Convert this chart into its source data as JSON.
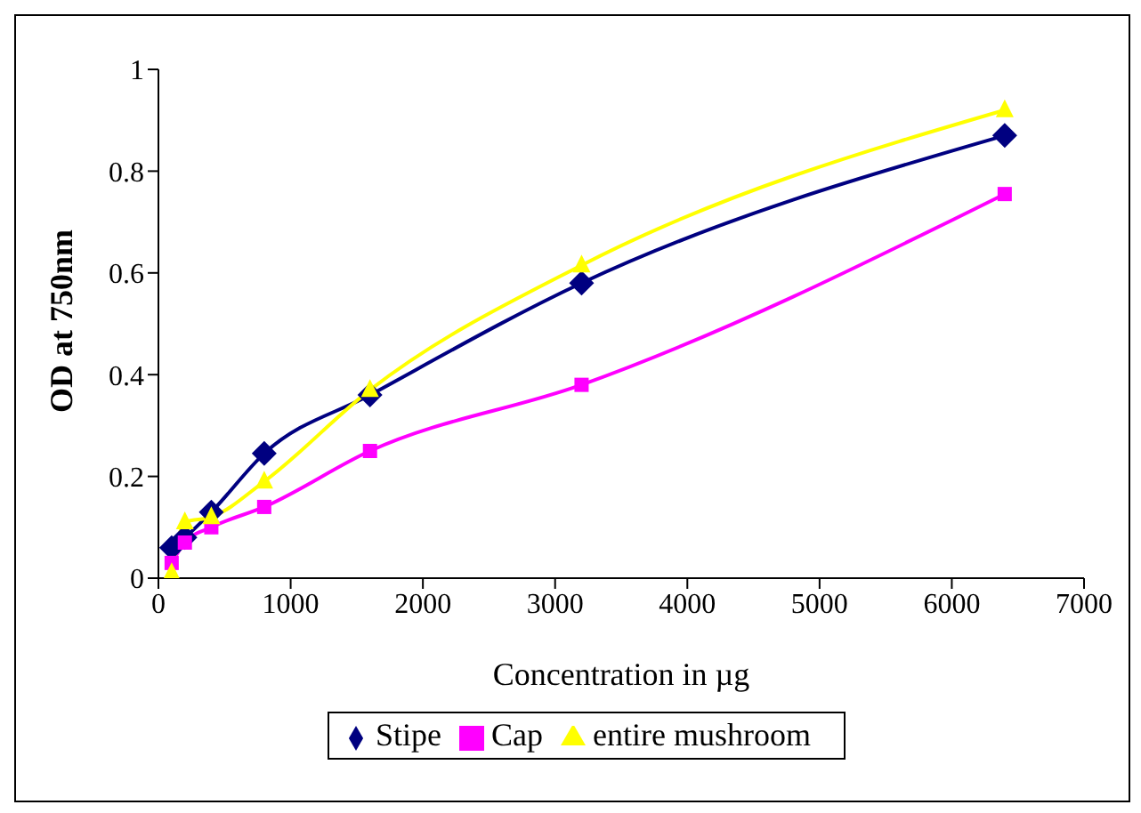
{
  "chart_data": {
    "type": "line",
    "xlabel": "Concentration in µg",
    "ylabel": "OD at 750nm",
    "x": [
      100,
      200,
      400,
      800,
      1600,
      3200,
      6400
    ],
    "series": [
      {
        "name": "Stipe",
        "color": "#000080",
        "marker": "diamond",
        "values": [
          0.06,
          0.08,
          0.13,
          0.245,
          0.36,
          0.58,
          0.87
        ]
      },
      {
        "name": "Cap",
        "color": "#ff00ff",
        "marker": "square",
        "values": [
          0.03,
          0.07,
          0.1,
          0.14,
          0.25,
          0.38,
          0.755
        ]
      },
      {
        "name": "entire  mushroom",
        "color": "#ffff00",
        "marker": "triangle",
        "values": [
          0.01,
          0.11,
          0.12,
          0.19,
          0.37,
          0.615,
          0.92
        ]
      }
    ],
    "xlim": [
      0,
      7000
    ],
    "xticks": [
      0,
      1000,
      2000,
      3000,
      4000,
      5000,
      6000,
      7000
    ],
    "ylim": [
      0,
      1
    ],
    "yticks": [
      0,
      0.2,
      0.4,
      0.6,
      0.8,
      1
    ],
    "grid": false,
    "legend": "bottom"
  }
}
